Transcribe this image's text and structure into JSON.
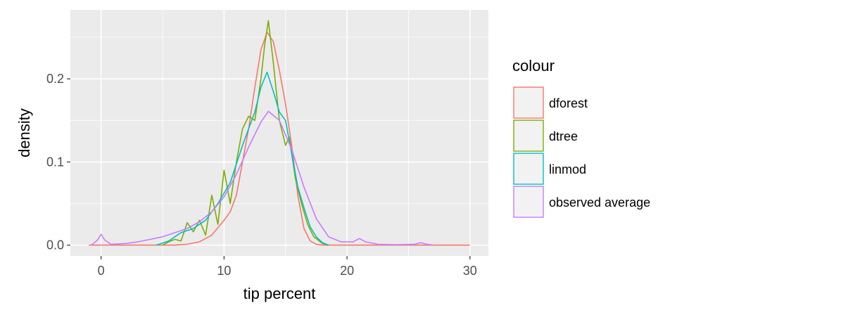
{
  "chart_data": {
    "type": "line",
    "title": "",
    "xlabel": "tip percent",
    "ylabel": "density",
    "xlim": [
      -2.5,
      31.5
    ],
    "ylim": [
      -0.013,
      0.283
    ],
    "x_ticks": [
      0,
      10,
      20,
      30
    ],
    "x_tick_labels": [
      "0",
      "10",
      "20",
      "30"
    ],
    "y_ticks": [
      0.0,
      0.1,
      0.2
    ],
    "y_tick_labels": [
      "0.0",
      "0.1",
      "0.2"
    ],
    "grid": true,
    "legend": {
      "title": "colour",
      "position": "right"
    },
    "series": [
      {
        "name": "dforest",
        "color": "#F8766D",
        "points": [
          [
            -1,
            0
          ],
          [
            6,
            0
          ],
          [
            7,
            0.001
          ],
          [
            8,
            0.004
          ],
          [
            9,
            0.012
          ],
          [
            10,
            0.03
          ],
          [
            10.5,
            0.04
          ],
          [
            11,
            0.06
          ],
          [
            11.5,
            0.1
          ],
          [
            12,
            0.14
          ],
          [
            12.5,
            0.19
          ],
          [
            13,
            0.235
          ],
          [
            13.5,
            0.256
          ],
          [
            14,
            0.245
          ],
          [
            14.5,
            0.21
          ],
          [
            15,
            0.17
          ],
          [
            15.5,
            0.12
          ],
          [
            16,
            0.06
          ],
          [
            16.5,
            0.02
          ],
          [
            17,
            0.005
          ],
          [
            17.5,
            0.001
          ],
          [
            18,
            0
          ],
          [
            30,
            0
          ]
        ]
      },
      {
        "name": "dtree",
        "color": "#7CAE00",
        "points": [
          [
            5,
            0
          ],
          [
            5.5,
            0.004
          ],
          [
            6,
            0.007
          ],
          [
            6.5,
            0.005
          ],
          [
            7,
            0.027
          ],
          [
            7.5,
            0.016
          ],
          [
            8,
            0.03
          ],
          [
            8.5,
            0.012
          ],
          [
            9,
            0.06
          ],
          [
            9.5,
            0.025
          ],
          [
            10,
            0.09
          ],
          [
            10.5,
            0.05
          ],
          [
            11,
            0.1
          ],
          [
            11.5,
            0.14
          ],
          [
            12,
            0.155
          ],
          [
            12.5,
            0.15
          ],
          [
            13,
            0.2
          ],
          [
            13.3,
            0.24
          ],
          [
            13.6,
            0.27
          ],
          [
            14,
            0.22
          ],
          [
            14.5,
            0.15
          ],
          [
            15,
            0.12
          ],
          [
            15.3,
            0.13
          ],
          [
            15.8,
            0.08
          ],
          [
            16.3,
            0.05
          ],
          [
            16.8,
            0.025
          ],
          [
            17.3,
            0.01
          ],
          [
            18,
            0.002
          ],
          [
            18.5,
            0
          ]
        ]
      },
      {
        "name": "linmod",
        "color": "#00BFC4",
        "points": [
          [
            4.5,
            0
          ],
          [
            5.5,
            0.005
          ],
          [
            6.5,
            0.015
          ],
          [
            7.5,
            0.02
          ],
          [
            8.5,
            0.03
          ],
          [
            9.5,
            0.05
          ],
          [
            10.5,
            0.075
          ],
          [
            11.5,
            0.12
          ],
          [
            12.5,
            0.16
          ],
          [
            13,
            0.19
          ],
          [
            13.5,
            0.208
          ],
          [
            14,
            0.185
          ],
          [
            14.5,
            0.16
          ],
          [
            15,
            0.15
          ],
          [
            15.5,
            0.11
          ],
          [
            16,
            0.07
          ],
          [
            16.5,
            0.045
          ],
          [
            17,
            0.022
          ],
          [
            17.5,
            0.01
          ],
          [
            18,
            0.003
          ],
          [
            18.5,
            0
          ]
        ]
      },
      {
        "name": "observed average",
        "color": "#C77CFF",
        "points": [
          [
            -0.8,
            0
          ],
          [
            -0.3,
            0.006
          ],
          [
            0,
            0.013
          ],
          [
            0.3,
            0.006
          ],
          [
            0.8,
            0.001
          ],
          [
            2,
            0.002
          ],
          [
            3,
            0.004
          ],
          [
            4,
            0.007
          ],
          [
            5,
            0.01
          ],
          [
            6,
            0.015
          ],
          [
            7,
            0.02
          ],
          [
            8,
            0.028
          ],
          [
            9,
            0.04
          ],
          [
            10,
            0.058
          ],
          [
            11,
            0.085
          ],
          [
            12,
            0.118
          ],
          [
            13,
            0.148
          ],
          [
            13.6,
            0.161
          ],
          [
            14.5,
            0.15
          ],
          [
            15.5,
            0.115
          ],
          [
            16.5,
            0.07
          ],
          [
            17.5,
            0.032
          ],
          [
            18.5,
            0.01
          ],
          [
            19.5,
            0.004
          ],
          [
            20.5,
            0.004
          ],
          [
            21,
            0.008
          ],
          [
            21.5,
            0.004
          ],
          [
            22.5,
            0.001
          ],
          [
            24,
            0.0005
          ],
          [
            25.5,
            0.001
          ],
          [
            26,
            0.003
          ],
          [
            26.5,
            0.001
          ],
          [
            27,
            0
          ]
        ]
      }
    ]
  }
}
